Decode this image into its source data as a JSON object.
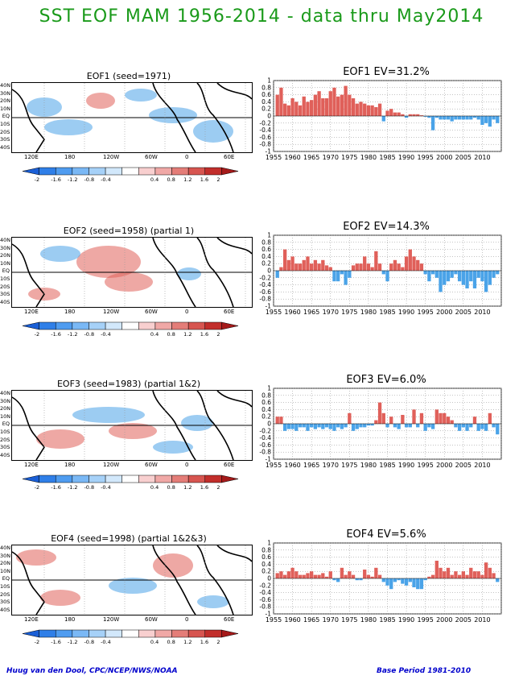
{
  "title": "SST EOF MAM 1956-2014 - data thru May2014",
  "footer_left": "Huug van den Dool, CPC/NCEP/NWS/NOAA",
  "footer_right": "Base Period 1981-2010",
  "colors": {
    "positive": "#e0605a",
    "negative": "#4aa3e8",
    "title": "#1a9a1a",
    "footer": "#0000cc"
  },
  "map_lat_labels": [
    "40N",
    "30N",
    "20N",
    "10N",
    "EQ",
    "10S",
    "20S",
    "30S",
    "40S"
  ],
  "map_lon_labels": [
    "120E",
    "180",
    "120W",
    "60W",
    "0",
    "60E"
  ],
  "colorbar_labels": [
    "-2",
    "-1.6",
    "-1.2",
    "-0.8",
    "-0.4",
    "0.4",
    "0.8",
    "1.2",
    "1.6",
    "2"
  ],
  "colorbar_colors": [
    "#1a5fd6",
    "#2f7fe8",
    "#4f9cf0",
    "#7ab8f5",
    "#a6d1f8",
    "#d2e8fb",
    "#ffffff",
    "#f8cfcf",
    "#f0a8a6",
    "#e47d78",
    "#d75550",
    "#c22e2b",
    "#a51a1a"
  ],
  "chart_data": [
    {
      "type": "bar",
      "map_title": "EOF1   (seed=1971)",
      "title": "EOF1   EV=31.2%",
      "x": [
        1956,
        1957,
        1958,
        1959,
        1960,
        1961,
        1962,
        1963,
        1964,
        1965,
        1966,
        1967,
        1968,
        1969,
        1970,
        1971,
        1972,
        1973,
        1974,
        1975,
        1976,
        1977,
        1978,
        1979,
        1980,
        1981,
        1982,
        1983,
        1984,
        1985,
        1986,
        1987,
        1988,
        1989,
        1990,
        1991,
        1992,
        1993,
        1994,
        1995,
        1996,
        1997,
        1998,
        1999,
        2000,
        2001,
        2002,
        2003,
        2004,
        2005,
        2006,
        2007,
        2008,
        2009,
        2010,
        2011,
        2012,
        2013,
        2014
      ],
      "values": [
        0.6,
        0.8,
        0.35,
        0.3,
        0.5,
        0.4,
        0.3,
        0.55,
        0.4,
        0.45,
        0.6,
        0.7,
        0.5,
        0.5,
        0.7,
        0.8,
        0.55,
        0.6,
        0.85,
        0.6,
        0.5,
        0.35,
        0.4,
        0.35,
        0.3,
        0.3,
        0.25,
        0.35,
        -0.15,
        0.15,
        0.2,
        0.1,
        0.1,
        0.05,
        -0.05,
        0.05,
        0.05,
        0.05,
        0.02,
        -0.02,
        -0.05,
        -0.4,
        -0.05,
        -0.1,
        -0.1,
        -0.1,
        -0.15,
        -0.1,
        -0.1,
        -0.1,
        -0.1,
        -0.1,
        -0.05,
        -0.1,
        -0.25,
        -0.2,
        -0.3,
        -0.1,
        -0.2
      ],
      "xticks": [
        "1955",
        "1960",
        "1965",
        "1970",
        "1975",
        "1980",
        "1985",
        "1990",
        "1995",
        "2000",
        "2005",
        "2010"
      ],
      "yticks": [
        "1",
        "0.8",
        "0.6",
        "0.4",
        "0.2",
        "0",
        "-0.2",
        "-0.4",
        "-0.6",
        "-0.8",
        "-1"
      ],
      "ylim": [
        -1,
        1
      ]
    },
    {
      "type": "bar",
      "map_title": "EOF2   (seed=1958)  (partial 1)",
      "title": "EOF2   EV=14.3%",
      "x": [
        1956,
        1957,
        1958,
        1959,
        1960,
        1961,
        1962,
        1963,
        1964,
        1965,
        1966,
        1967,
        1968,
        1969,
        1970,
        1971,
        1972,
        1973,
        1974,
        1975,
        1976,
        1977,
        1978,
        1979,
        1980,
        1981,
        1982,
        1983,
        1984,
        1985,
        1986,
        1987,
        1988,
        1989,
        1990,
        1991,
        1992,
        1993,
        1994,
        1995,
        1996,
        1997,
        1998,
        1999,
        2000,
        2001,
        2002,
        2003,
        2004,
        2005,
        2006,
        2007,
        2008,
        2009,
        2010,
        2011,
        2012,
        2013,
        2014
      ],
      "values": [
        -0.2,
        0.1,
        0.6,
        0.3,
        0.4,
        0.2,
        0.2,
        0.3,
        0.4,
        0.2,
        0.3,
        0.2,
        0.3,
        0.15,
        0.1,
        -0.3,
        -0.3,
        -0.1,
        -0.4,
        -0.2,
        0.15,
        0.2,
        0.2,
        0.4,
        0.2,
        0.1,
        0.55,
        0.2,
        -0.1,
        -0.3,
        0.2,
        0.3,
        0.2,
        0.1,
        0.4,
        0.6,
        0.4,
        0.3,
        0.2,
        -0.1,
        -0.3,
        -0.1,
        -0.2,
        -0.6,
        -0.4,
        -0.3,
        -0.2,
        -0.1,
        -0.3,
        -0.4,
        -0.5,
        -0.3,
        -0.5,
        -0.2,
        -0.3,
        -0.6,
        -0.4,
        -0.2,
        -0.1
      ],
      "xticks": [
        "1955",
        "1960",
        "1965",
        "1970",
        "1975",
        "1980",
        "1985",
        "1990",
        "1995",
        "2000",
        "2005",
        "2010"
      ],
      "yticks": [
        "1",
        "0.8",
        "0.6",
        "0.4",
        "0.2",
        "0",
        "-0.2",
        "-0.4",
        "-0.6",
        "-0.8",
        "-1"
      ],
      "ylim": [
        -1,
        1
      ]
    },
    {
      "type": "bar",
      "map_title": "EOF3   (seed=1983)  (partial 1&2)",
      "title": "EOF3   EV=6.0%",
      "x": [
        1956,
        1957,
        1958,
        1959,
        1960,
        1961,
        1962,
        1963,
        1964,
        1965,
        1966,
        1967,
        1968,
        1969,
        1970,
        1971,
        1972,
        1973,
        1974,
        1975,
        1976,
        1977,
        1978,
        1979,
        1980,
        1981,
        1982,
        1983,
        1984,
        1985,
        1986,
        1987,
        1988,
        1989,
        1990,
        1991,
        1992,
        1993,
        1994,
        1995,
        1996,
        1997,
        1998,
        1999,
        2000,
        2001,
        2002,
        2003,
        2004,
        2005,
        2006,
        2007,
        2008,
        2009,
        2010,
        2011,
        2012,
        2013,
        2014
      ],
      "values": [
        0.2,
        0.2,
        -0.2,
        -0.15,
        -0.15,
        -0.2,
        -0.1,
        -0.1,
        -0.2,
        -0.1,
        -0.15,
        -0.1,
        -0.15,
        -0.1,
        -0.15,
        -0.2,
        -0.1,
        -0.15,
        -0.1,
        0.3,
        -0.2,
        -0.15,
        -0.1,
        -0.1,
        -0.05,
        -0.05,
        0.1,
        0.6,
        0.3,
        -0.1,
        0.2,
        -0.1,
        -0.15,
        0.25,
        -0.1,
        -0.1,
        0.4,
        -0.1,
        0.3,
        -0.2,
        -0.1,
        -0.15,
        0.4,
        0.3,
        0.3,
        0.2,
        0.1,
        -0.1,
        -0.2,
        -0.1,
        -0.2,
        -0.1,
        0.2,
        -0.2,
        -0.15,
        -0.2,
        0.3,
        -0.1,
        -0.3
      ],
      "xticks": [
        "1955",
        "1960",
        "1965",
        "1970",
        "1975",
        "1980",
        "1985",
        "1990",
        "1995",
        "2000",
        "2005",
        "2010"
      ],
      "yticks": [
        "1",
        "0.8",
        "0.6",
        "0.4",
        "0.2",
        "0",
        "-0.2",
        "-0.4",
        "-0.6",
        "-0.8",
        "-1"
      ],
      "ylim": [
        -1,
        1
      ]
    },
    {
      "type": "bar",
      "map_title": "EOF4   (seed=1998)  (partial 1&2&3)",
      "title": "EOF4   EV=5.6%",
      "x": [
        1956,
        1957,
        1958,
        1959,
        1960,
        1961,
        1962,
        1963,
        1964,
        1965,
        1966,
        1967,
        1968,
        1969,
        1970,
        1971,
        1972,
        1973,
        1974,
        1975,
        1976,
        1977,
        1978,
        1979,
        1980,
        1981,
        1982,
        1983,
        1984,
        1985,
        1986,
        1987,
        1988,
        1989,
        1990,
        1991,
        1992,
        1993,
        1994,
        1995,
        1996,
        1997,
        1998,
        1999,
        2000,
        2001,
        2002,
        2003,
        2004,
        2005,
        2006,
        2007,
        2008,
        2009,
        2010,
        2011,
        2012,
        2013,
        2014
      ],
      "values": [
        0.15,
        0.2,
        0.1,
        0.2,
        0.3,
        0.2,
        0.1,
        0.1,
        0.15,
        0.2,
        0.1,
        0.1,
        0.15,
        0.05,
        0.2,
        -0.05,
        -0.1,
        0.3,
        0.1,
        0.2,
        0.1,
        -0.05,
        -0.05,
        0.25,
        0.1,
        0.05,
        0.3,
        0.1,
        -0.1,
        -0.2,
        -0.3,
        -0.1,
        -0.05,
        -0.15,
        -0.2,
        -0.1,
        -0.25,
        -0.3,
        -0.3,
        -0.05,
        0.05,
        0.1,
        0.5,
        0.3,
        0.2,
        0.3,
        0.1,
        0.2,
        0.1,
        0.2,
        0.1,
        0.3,
        0.2,
        0.2,
        0.1,
        0.45,
        0.3,
        0.15,
        -0.1
      ],
      "xticks": [
        "1955",
        "1960",
        "1965",
        "1970",
        "1975",
        "1980",
        "1985",
        "1990",
        "1995",
        "2000",
        "2005",
        "2010"
      ],
      "yticks": [
        "1",
        "0.8",
        "0.6",
        "0.4",
        "0.2",
        "0",
        "-0.2",
        "-0.4",
        "-0.6",
        "-0.8",
        "-1"
      ],
      "ylim": [
        -1,
        1
      ]
    }
  ]
}
